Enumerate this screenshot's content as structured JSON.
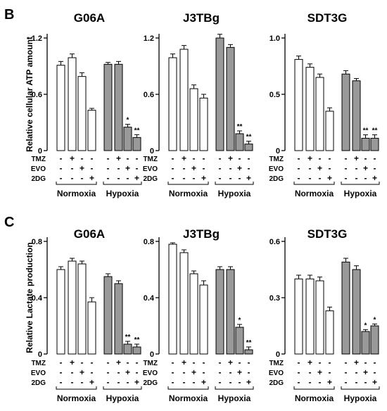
{
  "panels": [
    {
      "letter": "B",
      "ylabel": "Relative cellular ATP amount",
      "conditions": [
        "TMZ",
        "EVO",
        "2DG"
      ],
      "groups": [
        "Normoxia",
        "Hypoxia"
      ],
      "signs": [
        [
          "-",
          "+",
          "-",
          "-",
          "-",
          "+",
          "-",
          "-"
        ],
        [
          "-",
          "-",
          "+",
          "-",
          "-",
          "-",
          "+",
          "-"
        ],
        [
          "-",
          "-",
          "-",
          "+",
          "-",
          "-",
          "-",
          "+"
        ]
      ],
      "bar_fills": [
        "#ffffff",
        "#ffffff",
        "#ffffff",
        "#ffffff",
        "#999999",
        "#999999",
        "#999999",
        "#999999"
      ]
    },
    {
      "letter": "C",
      "ylabel": "Relative Lactate production",
      "conditions": [
        "TMZ",
        "EVO",
        "2DG"
      ],
      "groups": [
        "Normoxia",
        "Hypoxia"
      ],
      "signs": [
        [
          "-",
          "+",
          "-",
          "-",
          "-",
          "+",
          "-",
          "-"
        ],
        [
          "-",
          "-",
          "+",
          "-",
          "-",
          "-",
          "+",
          "-"
        ],
        [
          "-",
          "-",
          "-",
          "+",
          "-",
          "-",
          "-",
          "+"
        ]
      ],
      "bar_fills": [
        "#ffffff",
        "#ffffff",
        "#ffffff",
        "#ffffff",
        "#999999",
        "#999999",
        "#999999",
        "#999999"
      ]
    }
  ],
  "chart_data": [
    {
      "type": "bar",
      "panel": "B",
      "title": "G06A",
      "ylim": [
        0,
        1.2
      ],
      "ticks": [
        "0",
        "0.6",
        "1.2"
      ],
      "values": [
        0.91,
        0.99,
        0.79,
        0.43,
        0.92,
        0.92,
        0.25,
        0.14
      ],
      "errors": [
        0.04,
        0.04,
        0.04,
        0.02,
        0.02,
        0.03,
        0.03,
        0.03
      ],
      "significance": [
        "",
        "",
        "",
        "",
        "",
        "",
        "*",
        "**"
      ]
    },
    {
      "type": "bar",
      "panel": "B",
      "title": "J3TBg",
      "ylim": [
        0,
        1.2
      ],
      "ticks": [
        "0",
        "0.6",
        "1.2"
      ],
      "values": [
        0.99,
        1.08,
        0.66,
        0.56,
        1.2,
        1.1,
        0.18,
        0.07
      ],
      "errors": [
        0.04,
        0.04,
        0.04,
        0.04,
        0.04,
        0.03,
        0.03,
        0.03
      ],
      "significance": [
        "",
        "",
        "",
        "",
        "",
        "",
        "**",
        "**"
      ]
    },
    {
      "type": "bar",
      "panel": "B",
      "title": "SDT3G",
      "ylim": [
        0,
        1.0
      ],
      "ticks": [
        "0",
        "0.5",
        "1.0"
      ],
      "values": [
        0.81,
        0.74,
        0.65,
        0.35,
        0.68,
        0.62,
        0.11,
        0.11
      ],
      "errors": [
        0.03,
        0.03,
        0.03,
        0.03,
        0.03,
        0.02,
        0.03,
        0.03
      ],
      "significance": [
        "",
        "",
        "",
        "",
        "",
        "",
        "**",
        "**"
      ]
    },
    {
      "type": "bar",
      "panel": "C",
      "title": "G06A",
      "ylim": [
        0,
        0.8
      ],
      "ticks": [
        "0",
        "0.4",
        "0.8"
      ],
      "values": [
        0.6,
        0.66,
        0.64,
        0.37,
        0.55,
        0.5,
        0.07,
        0.05
      ],
      "errors": [
        0.02,
        0.02,
        0.02,
        0.03,
        0.02,
        0.02,
        0.02,
        0.02
      ],
      "significance": [
        "",
        "",
        "",
        "",
        "",
        "",
        "**",
        "**"
      ]
    },
    {
      "type": "bar",
      "panel": "C",
      "title": "J3TBg",
      "ylim": [
        0,
        0.8
      ],
      "ticks": [
        "0",
        "0.4",
        "0.8"
      ],
      "values": [
        0.78,
        0.72,
        0.57,
        0.49,
        0.6,
        0.6,
        0.19,
        0.03
      ],
      "errors": [
        0.01,
        0.02,
        0.02,
        0.03,
        0.02,
        0.02,
        0.02,
        0.02
      ],
      "significance": [
        "",
        "",
        "",
        "",
        "",
        "",
        "*",
        "**"
      ]
    },
    {
      "type": "bar",
      "panel": "C",
      "title": "SDT3G",
      "ylim": [
        0,
        0.6
      ],
      "ticks": [
        "0",
        "0.3",
        "0.6"
      ],
      "values": [
        0.4,
        0.4,
        0.39,
        0.23,
        0.49,
        0.45,
        0.12,
        0.15
      ],
      "errors": [
        0.02,
        0.02,
        0.02,
        0.02,
        0.02,
        0.02,
        0.01,
        0.01
      ],
      "significance": [
        "",
        "",
        "",
        "",
        "",
        "",
        "*",
        "*"
      ]
    }
  ]
}
